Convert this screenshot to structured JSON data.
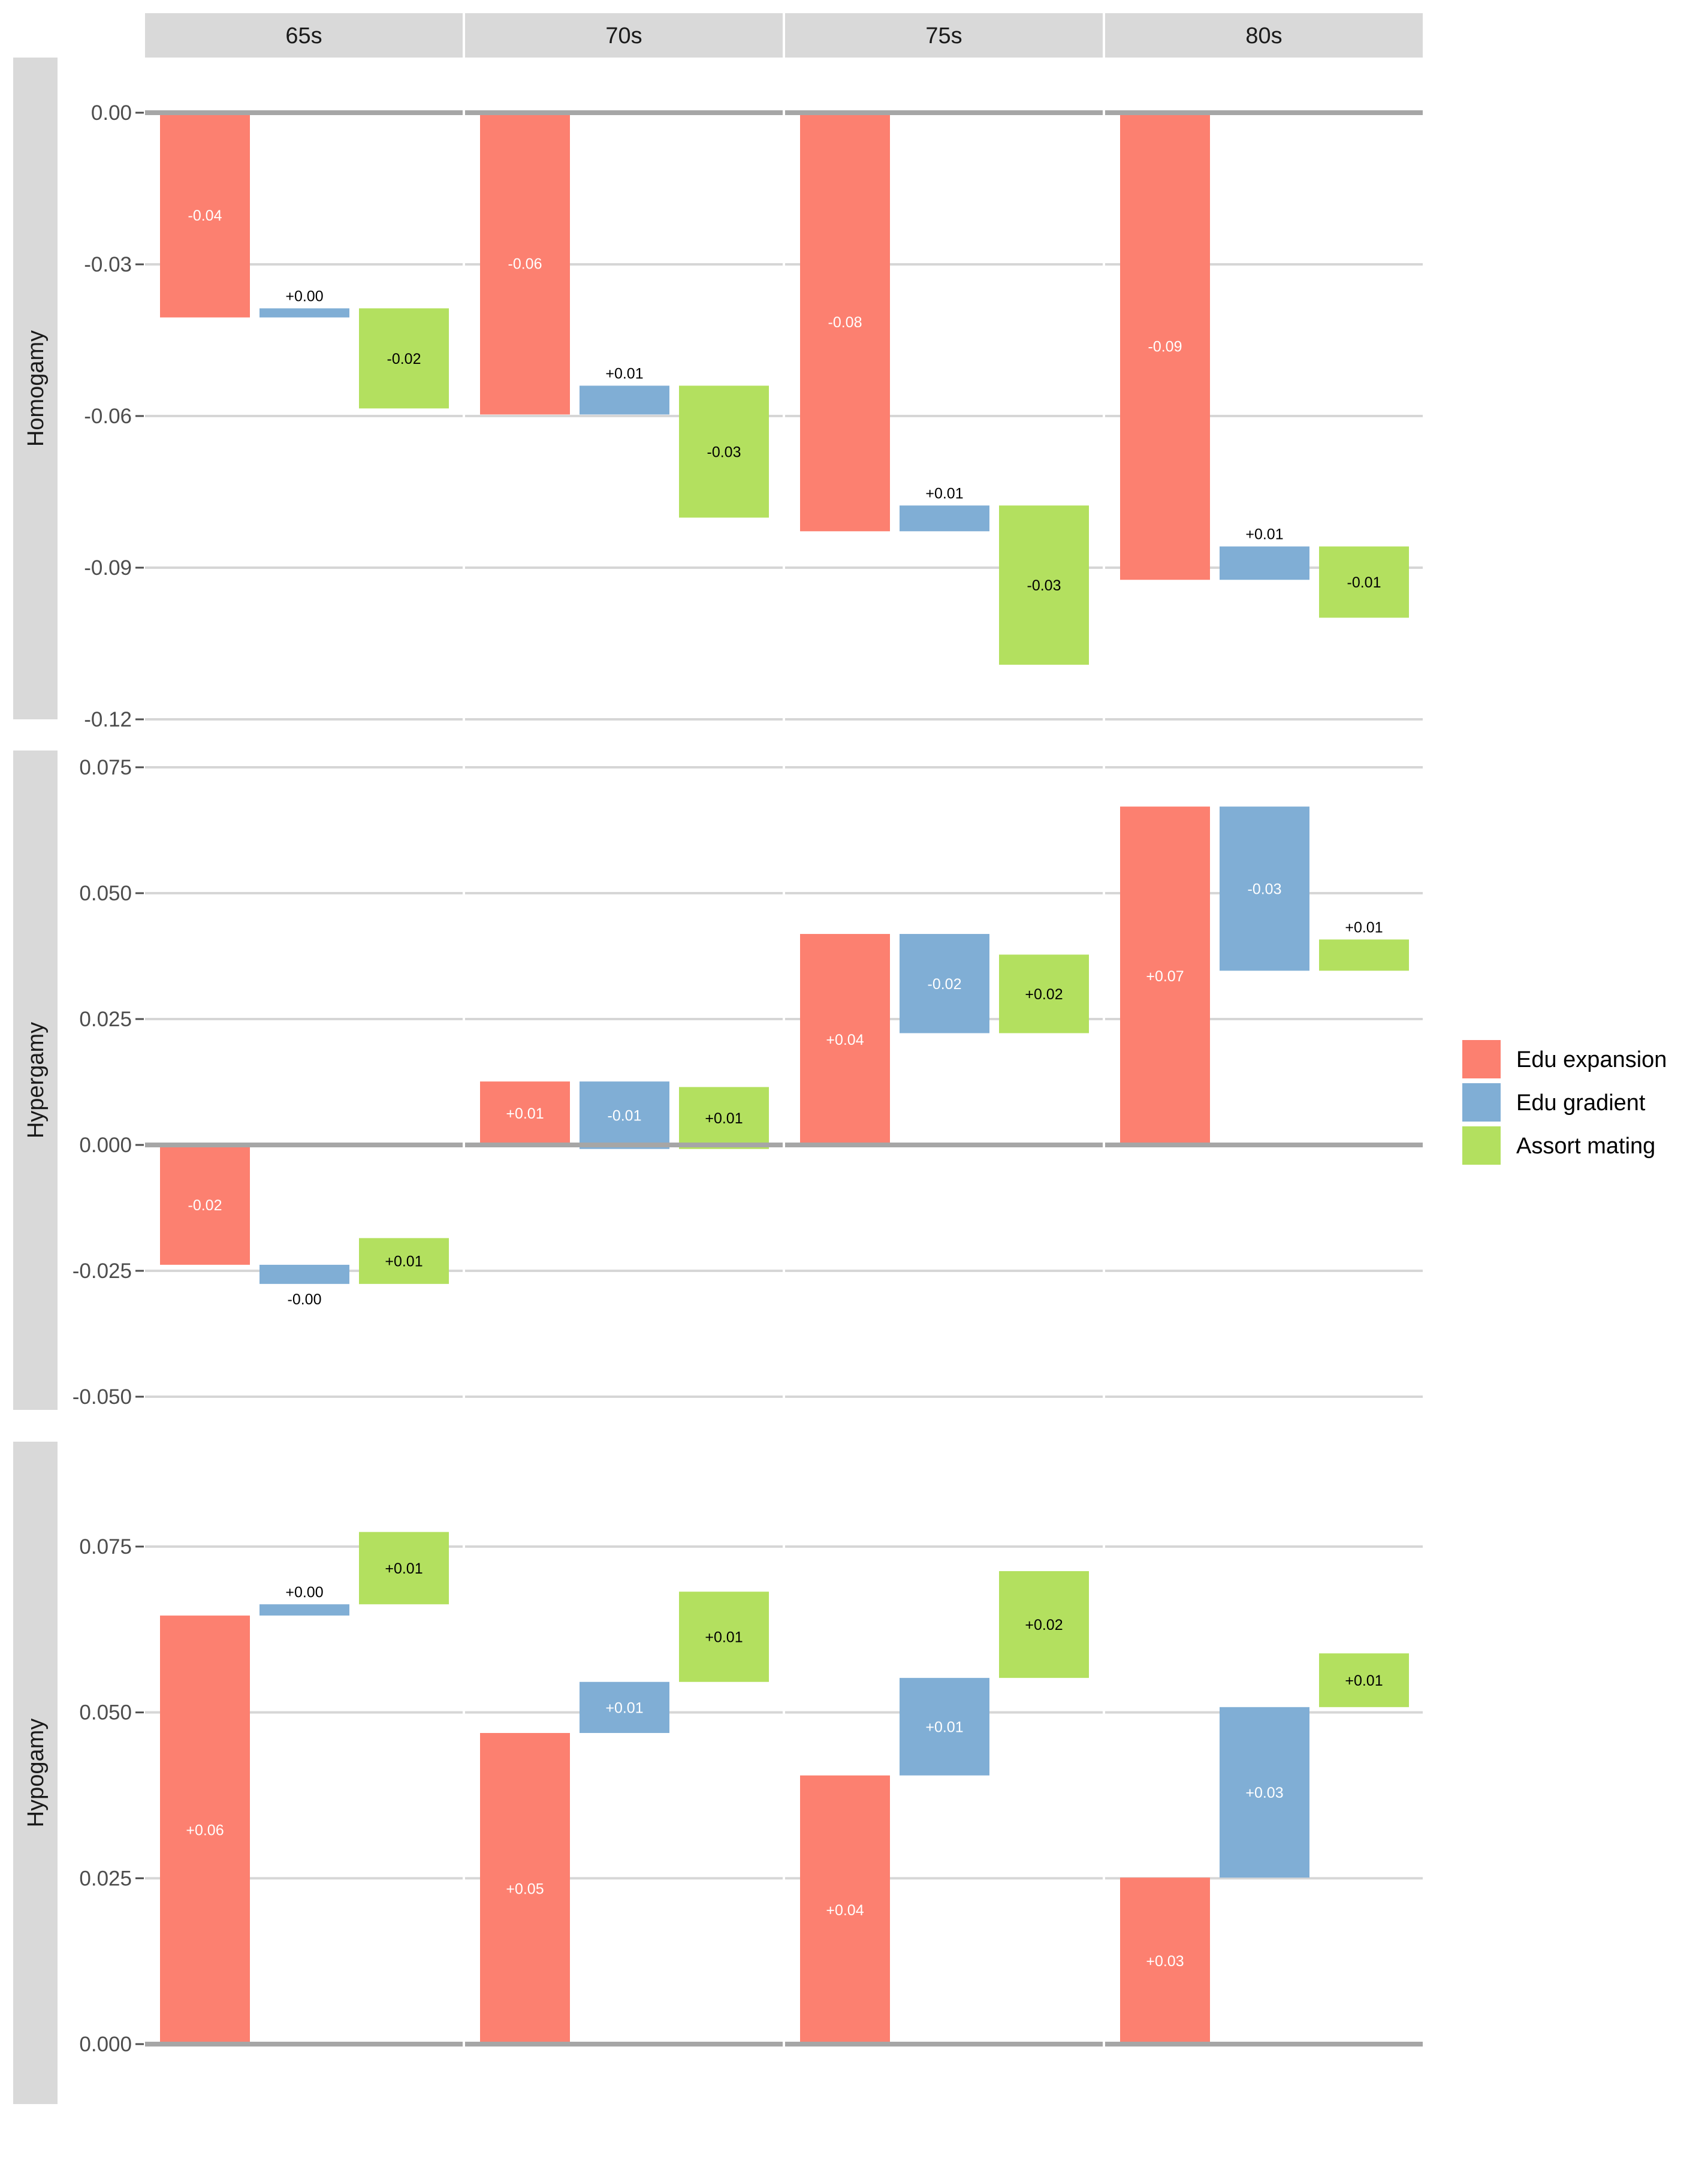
{
  "chart_data": {
    "type": "bar",
    "subtype": "waterfall (faceted grid)",
    "columns": [
      "65s",
      "70s",
      "75s",
      "80s"
    ],
    "legend": {
      "placement": "right",
      "entries": [
        {
          "name": "Edu expansion",
          "color": "#FC8070"
        },
        {
          "name": "Edu gradient",
          "color": "#80AED5"
        },
        {
          "name": "Assort mating",
          "color": "#B3E05F"
        }
      ]
    },
    "rows": [
      {
        "label": "Homogamy",
        "ylim": [
          -0.12,
          0.005
        ],
        "yticks": [
          0,
          -0.03,
          -0.06,
          -0.09,
          -0.12
        ],
        "yticklabels": [
          "0.00",
          "-0.03",
          "-0.06",
          "-0.09",
          "-0.12"
        ],
        "panels": [
          {
            "column": "65s",
            "bars": [
              {
                "series": "Edu expansion",
                "start": 0.0,
                "end": -0.0405,
                "label": "-0.04"
              },
              {
                "series": "Edu gradient",
                "start": -0.0405,
                "end": -0.0387,
                "label": "+0.00"
              },
              {
                "series": "Assort mating",
                "start": -0.0387,
                "end": -0.0585,
                "label": "-0.02"
              }
            ]
          },
          {
            "column": "70s",
            "bars": [
              {
                "series": "Edu expansion",
                "start": 0.0,
                "end": -0.0597,
                "label": "-0.06"
              },
              {
                "series": "Edu gradient",
                "start": -0.0597,
                "end": -0.054,
                "label": "+0.01"
              },
              {
                "series": "Assort mating",
                "start": -0.054,
                "end": -0.0801,
                "label": "-0.03"
              }
            ]
          },
          {
            "column": "75s",
            "bars": [
              {
                "series": "Edu expansion",
                "start": 0.0,
                "end": -0.0828,
                "label": "-0.08"
              },
              {
                "series": "Edu gradient",
                "start": -0.0828,
                "end": -0.0777,
                "label": "+0.01"
              },
              {
                "series": "Assort mating",
                "start": -0.0777,
                "end": -0.1092,
                "label": "-0.03"
              }
            ]
          },
          {
            "column": "80s",
            "bars": [
              {
                "series": "Edu expansion",
                "start": 0.0,
                "end": -0.0924,
                "label": "-0.09"
              },
              {
                "series": "Edu gradient",
                "start": -0.0924,
                "end": -0.0858,
                "label": "+0.01"
              },
              {
                "series": "Assort mating",
                "start": -0.0858,
                "end": -0.0999,
                "label": "-0.01"
              }
            ]
          }
        ]
      },
      {
        "label": "Hypergamy",
        "ylim": [
          -0.05,
          0.075
        ],
        "yticks": [
          0.075,
          0.05,
          0.025,
          0,
          -0.025,
          -0.05
        ],
        "yticklabels": [
          "0.075",
          "0.050",
          "0.025",
          "0.000",
          "-0.025",
          "-0.050"
        ],
        "panels": [
          {
            "column": "65s",
            "bars": [
              {
                "series": "Edu expansion",
                "start": 0.0,
                "end": -0.0238,
                "label": "-0.02"
              },
              {
                "series": "Edu gradient",
                "start": -0.0238,
                "end": -0.0276,
                "label": "-0.00"
              },
              {
                "series": "Assort mating",
                "start": -0.0276,
                "end": -0.0185,
                "label": "+0.01"
              }
            ]
          },
          {
            "column": "70s",
            "bars": [
              {
                "series": "Edu expansion",
                "start": 0.0,
                "end": 0.0126,
                "label": "+0.01"
              },
              {
                "series": "Edu gradient",
                "start": 0.0126,
                "end": -0.0008,
                "label": "-0.01"
              },
              {
                "series": "Assort mating",
                "start": -0.0008,
                "end": 0.0115,
                "label": "+0.01"
              }
            ]
          },
          {
            "column": "75s",
            "bars": [
              {
                "series": "Edu expansion",
                "start": 0.0,
                "end": 0.0419,
                "label": "+0.04"
              },
              {
                "series": "Edu gradient",
                "start": 0.0419,
                "end": 0.0222,
                "label": "-0.02"
              },
              {
                "series": "Assort mating",
                "start": 0.0222,
                "end": 0.0378,
                "label": "+0.02"
              }
            ]
          },
          {
            "column": "80s",
            "bars": [
              {
                "series": "Edu expansion",
                "start": 0.0,
                "end": 0.0672,
                "label": "+0.07"
              },
              {
                "series": "Edu gradient",
                "start": 0.0672,
                "end": 0.0346,
                "label": "-0.03"
              },
              {
                "series": "Assort mating",
                "start": 0.0346,
                "end": 0.0408,
                "label": "+0.01"
              }
            ]
          }
        ]
      },
      {
        "label": "Hypogamy",
        "ylim": [
          0,
          0.0825
        ],
        "yticks": [
          0.075,
          0.05,
          0.025,
          0
        ],
        "yticklabels": [
          "0.075",
          "0.050",
          "0.025",
          "0.000"
        ],
        "panels": [
          {
            "column": "65s",
            "bars": [
              {
                "series": "Edu expansion",
                "start": 0.0,
                "end": 0.0646,
                "label": "+0.06"
              },
              {
                "series": "Edu gradient",
                "start": 0.0646,
                "end": 0.0663,
                "label": "+0.00"
              },
              {
                "series": "Assort mating",
                "start": 0.0663,
                "end": 0.0772,
                "label": "+0.01"
              }
            ]
          },
          {
            "column": "70s",
            "bars": [
              {
                "series": "Edu expansion",
                "start": 0.0,
                "end": 0.0469,
                "label": "+0.05"
              },
              {
                "series": "Edu gradient",
                "start": 0.0469,
                "end": 0.0546,
                "label": "+0.01"
              },
              {
                "series": "Assort mating",
                "start": 0.0546,
                "end": 0.0682,
                "label": "+0.01"
              }
            ]
          },
          {
            "column": "75s",
            "bars": [
              {
                "series": "Edu expansion",
                "start": 0.0,
                "end": 0.0405,
                "label": "+0.04"
              },
              {
                "series": "Edu gradient",
                "start": 0.0405,
                "end": 0.0552,
                "label": "+0.01"
              },
              {
                "series": "Assort mating",
                "start": 0.0552,
                "end": 0.0713,
                "label": "+0.02"
              }
            ]
          },
          {
            "column": "80s",
            "bars": [
              {
                "series": "Edu expansion",
                "start": 0.0,
                "end": 0.0251,
                "label": "+0.03"
              },
              {
                "series": "Edu gradient",
                "start": 0.0251,
                "end": 0.0508,
                "label": "+0.03"
              },
              {
                "series": "Assort mating",
                "start": 0.0508,
                "end": 0.0589,
                "label": "+0.01"
              }
            ]
          }
        ]
      }
    ]
  }
}
